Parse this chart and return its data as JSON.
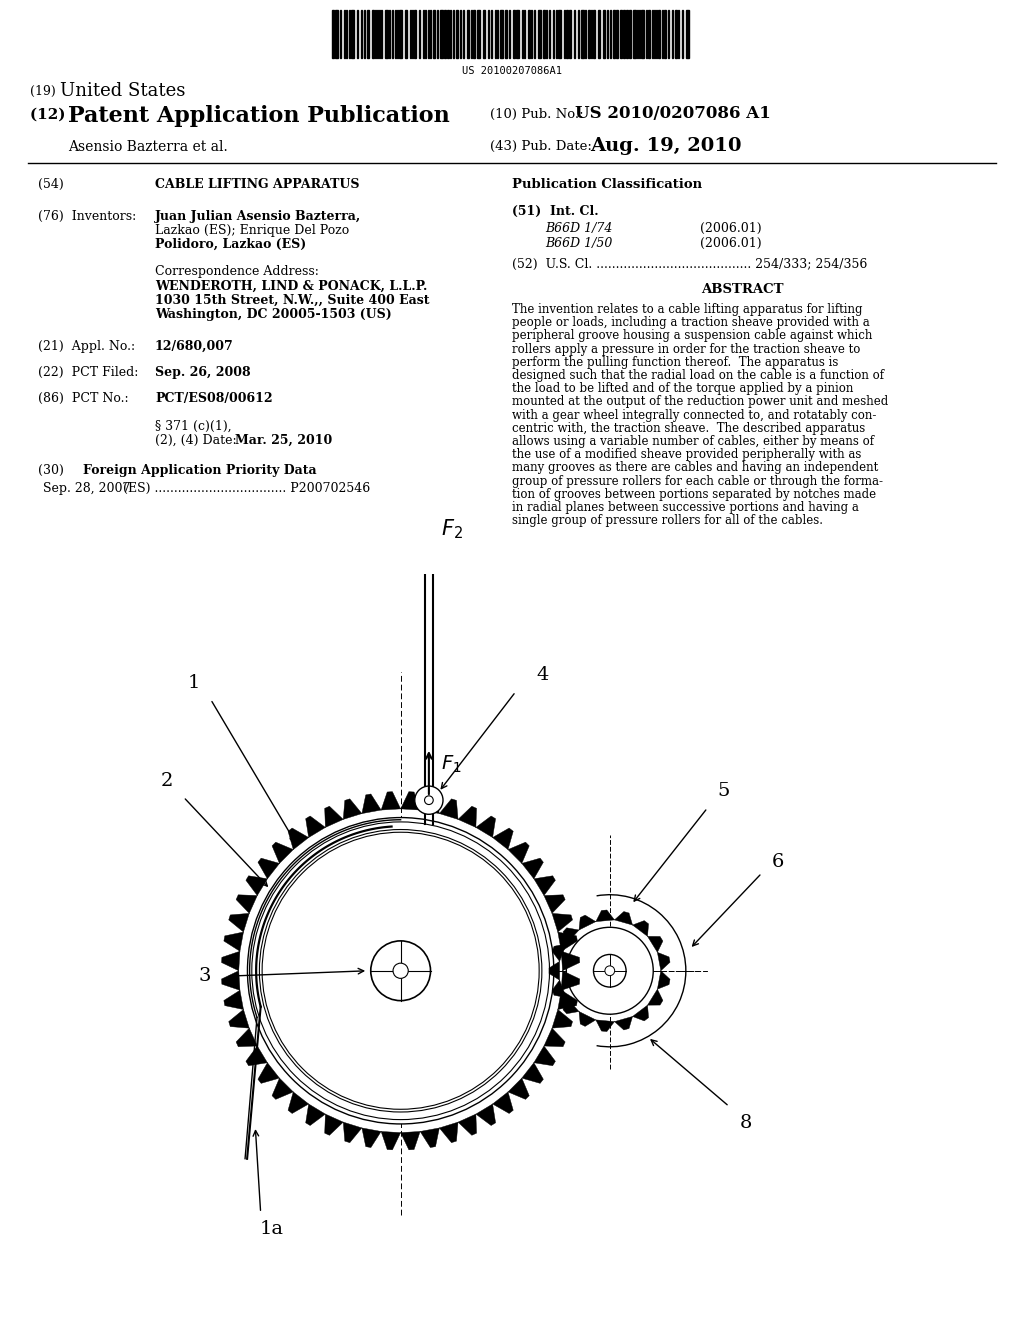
{
  "bg_color": "#ffffff",
  "barcode_text": "US 20100207086A1",
  "title_19_prefix": "(19) ",
  "title_19_main": "United States",
  "title_12_prefix": "(12) ",
  "title_12_main": "Patent Application Publication",
  "pub_no_label": "(10) Pub. No.:",
  "pub_no": "US 2010/0207086 A1",
  "author": "Asensio Bazterra et al.",
  "pub_date_label": "(43) Pub. Date:",
  "pub_date": "Aug. 19, 2010",
  "field54_label": "(54)",
  "field54": "CABLE LIFTING APPARATUS",
  "pub_class_title": "Publication Classification",
  "field51_label": "(51)  Int. Cl.",
  "field51_b66d174": "B66D 1/74",
  "field51_b66d150": "B66D 1/50",
  "field51_b66d174_date": "(2006.01)",
  "field51_b66d150_date": "(2006.01)",
  "field52": "(52)  U.S. Cl. ........................................ 254/333; 254/356",
  "field57_title": "ABSTRACT",
  "field76_label": "(76)  Inventors:",
  "field76_name1": "Juan Julian Asensio Bazterra,",
  "field76_name2": "Lazkao (ES); Enrique Del Pozo",
  "field76_name3": "Polidoro, Lazkao (ES)",
  "correspondence_label": "Correspondence Address:",
  "corr1": "WENDEROTH, LIND & PONACK, L.L.P.",
  "corr2": "1030 15th Street, N.W.,, Suite 400 East",
  "corr3": "Washington, DC 20005-1503 (US)",
  "field21_label": "(21)  Appl. No.:",
  "field21": "12/680,007",
  "field22_label": "(22)  PCT Filed:",
  "field22": "Sep. 26, 2008",
  "field86_label": "(86)  PCT No.:",
  "field86": "PCT/ES08/00612",
  "field371_a": "§ 371 (c)(1),",
  "field371_b": "(2), (4) Date:",
  "field371_date": "Mar. 25, 2010",
  "field30_label": "(30)",
  "field30_center": "Foreign Application Priority Data",
  "field30_data1": "Sep. 28, 2007",
  "field30_data2": "(ES) .................................. P200702546",
  "abstract_lines": [
    "The invention relates to a cable lifting apparatus for lifting",
    "people or loads, including a traction sheave provided with a",
    "peripheral groove housing a suspension cable against which",
    "rollers apply a pressure in order for the traction sheave to",
    "perform the pulling function thereof.  The apparatus is",
    "designed such that the radial load on the cable is a function of",
    "the load to be lifted and of the torque applied by a pinion",
    "mounted at the output of the reduction power unit and meshed",
    "with a gear wheel integrally connected to, and rotatably con-",
    "centric with, the traction sheave.  The described apparatus",
    "allows using a variable number of cables, either by means of",
    "the use of a modified sheave provided peripherally with as",
    "many grooves as there are cables and having an independent",
    "group of pressure rollers for each cable or through the forma-",
    "tion of grooves between portions separated by notches made",
    "in radial planes between successive portions and having a",
    "single group of pressure rollers for all of the cables."
  ]
}
